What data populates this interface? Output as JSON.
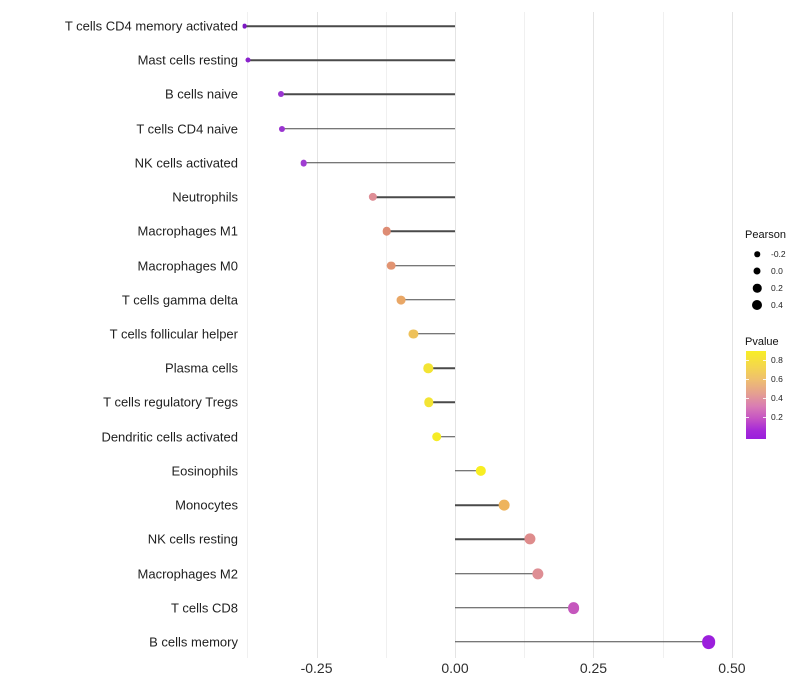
{
  "chart_data": {
    "type": "lollipop",
    "orientation": "horizontal",
    "title": "",
    "xlabel": "",
    "ylabel": "",
    "x_tick_labels": [
      "-0.25",
      "0.00",
      "0.25",
      "0.50"
    ],
    "x_tick_values": [
      -0.25,
      0.0,
      0.25,
      0.5
    ],
    "x_minor_gridline_values": [
      -0.375,
      -0.125,
      0.125,
      0.375
    ],
    "xlim": [
      -0.42,
      0.545
    ],
    "grid": "vertical-only",
    "background": "#ffffff",
    "stem_color": "#4a4a4a",
    "points": [
      {
        "label": "T cells CD4 memory activated",
        "pearson": -0.38,
        "color": "#7d18c4"
      },
      {
        "label": "Mast cells resting",
        "pearson": -0.373,
        "color": "#8a22cc"
      },
      {
        "label": "B cells naive",
        "pearson": -0.315,
        "color": "#9a35d0"
      },
      {
        "label": "T cells CD4 naive",
        "pearson": -0.312,
        "color": "#9a35d0"
      },
      {
        "label": "NK cells activated",
        "pearson": -0.273,
        "color": "#a03dd2"
      },
      {
        "label": "Neutrophils",
        "pearson": -0.148,
        "color": "#df8e96"
      },
      {
        "label": "Macrophages M1",
        "pearson": -0.123,
        "color": "#de8c74"
      },
      {
        "label": "Macrophages M0",
        "pearson": -0.115,
        "color": "#e29472"
      },
      {
        "label": "T cells gamma delta",
        "pearson": -0.098,
        "color": "#e9a766"
      },
      {
        "label": "T cells follicular helper",
        "pearson": -0.075,
        "color": "#eec15a"
      },
      {
        "label": "Plasma cells",
        "pearson": -0.048,
        "color": "#f3e434"
      },
      {
        "label": "T cells regulatory  Tregs",
        "pearson": -0.047,
        "color": "#f3e434"
      },
      {
        "label": "Dendritic cells activated",
        "pearson": -0.033,
        "color": "#f6ec26"
      },
      {
        "label": "Eosinophils",
        "pearson": 0.047,
        "color": "#f8ee22"
      },
      {
        "label": "Monocytes",
        "pearson": 0.089,
        "color": "#eeb45c"
      },
      {
        "label": "NK cells resting",
        "pearson": 0.136,
        "color": "#de8c8c"
      },
      {
        "label": "Macrophages M2",
        "pearson": 0.15,
        "color": "#de8e94"
      },
      {
        "label": "T cells CD8",
        "pearson": 0.214,
        "color": "#c557bd"
      },
      {
        "label": "B cells memory",
        "pearson": 0.458,
        "color": "#9b1fdc"
      }
    ],
    "legends": {
      "size": {
        "title": "Pearson",
        "entries": [
          "-0.2",
          "0.0",
          "0.2",
          "0.4"
        ],
        "entry_values": [
          -0.2,
          0.0,
          0.2,
          0.4
        ],
        "dot_color": "#000000"
      },
      "color": {
        "title": "Pvalue",
        "tick_labels": [
          "0.8",
          "0.6",
          "0.4",
          "0.2"
        ],
        "tick_values": [
          0.8,
          0.6,
          0.4,
          0.2
        ],
        "gradient_stops": [
          {
            "color": "#f8ee26",
            "pos": "0%"
          },
          {
            "color": "#f4d64e",
            "pos": "18%"
          },
          {
            "color": "#efc06e",
            "pos": "32%"
          },
          {
            "color": "#e5a090",
            "pos": "48%"
          },
          {
            "color": "#d97cb4",
            "pos": "63%"
          },
          {
            "color": "#c553c4",
            "pos": "77%"
          },
          {
            "color": "#a62ad8",
            "pos": "90%"
          },
          {
            "color": "#9a1fdc",
            "pos": "100%"
          }
        ]
      }
    }
  }
}
